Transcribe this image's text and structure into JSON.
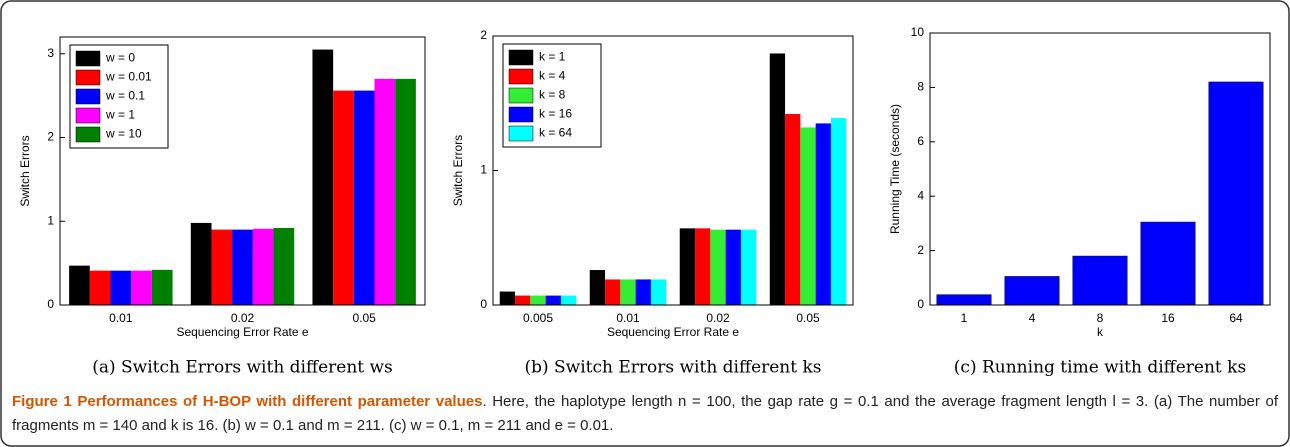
{
  "chart_data": [
    {
      "type": "bar",
      "caption": "(a) Switch Errors with different ws",
      "xlabel": "Sequencing Error Rate e",
      "ylabel": "Switch Errors",
      "categories": [
        "0.01",
        "0.02",
        "0.05"
      ],
      "series": [
        {
          "name": "w = 0",
          "color": "#000000",
          "values": [
            0.47,
            0.98,
            3.05
          ]
        },
        {
          "name": "w = 0.01",
          "color": "#ff0000",
          "values": [
            0.41,
            0.9,
            2.56
          ]
        },
        {
          "name": "w = 0.1",
          "color": "#0000ff",
          "values": [
            0.41,
            0.9,
            2.56
          ]
        },
        {
          "name": "w = 1",
          "color": "#ff00ff",
          "values": [
            0.41,
            0.91,
            2.7
          ]
        },
        {
          "name": "w = 10",
          "color": "#008000",
          "values": [
            0.42,
            0.92,
            2.7
          ]
        }
      ],
      "ylim": [
        0,
        3.2
      ],
      "yticks": [
        0,
        1,
        2,
        3
      ],
      "legend": "upper left"
    },
    {
      "type": "bar",
      "caption": "(b) Switch Errors with different ks",
      "xlabel": "Sequencing Error Rate e",
      "ylabel": "Switch Errors",
      "categories": [
        "0.005",
        "0.01",
        "0.02",
        "0.05"
      ],
      "series": [
        {
          "name": "k = 1",
          "color": "#000000",
          "values": [
            0.1,
            0.26,
            0.57,
            1.87
          ]
        },
        {
          "name": "k = 4",
          "color": "#ff0000",
          "values": [
            0.07,
            0.19,
            0.57,
            1.42
          ]
        },
        {
          "name": "k = 8",
          "color": "#33ee33",
          "values": [
            0.07,
            0.19,
            0.56,
            1.32
          ]
        },
        {
          "name": "k = 16",
          "color": "#0000ff",
          "values": [
            0.07,
            0.19,
            0.56,
            1.35
          ]
        },
        {
          "name": "k = 64",
          "color": "#00ffff",
          "values": [
            0.07,
            0.19,
            0.56,
            1.39
          ]
        }
      ],
      "ylim": [
        0,
        2
      ],
      "yticks": [
        0,
        1,
        2
      ],
      "legend": "upper left"
    },
    {
      "type": "bar",
      "caption": "(c) Running time with different ks",
      "xlabel": "k",
      "ylabel": "Running Time (seconds)",
      "categories": [
        "1",
        "4",
        "8",
        "16",
        "64"
      ],
      "values": [
        0.38,
        1.05,
        1.8,
        3.05,
        8.2
      ],
      "color": "#0000ff",
      "ylim": [
        0,
        10
      ],
      "yticks": [
        0,
        2,
        4,
        6,
        8,
        10
      ]
    }
  ],
  "figure_caption": {
    "title": "Figure 1 Performances of H-BOP with different parameter values",
    "text": ". Here, the haplotype length n = 100, the gap rate g = 0.1 and the average fragment length l = 3. (a) The number of fragments m = 140 and k is 16. (b) w = 0.1 and m = 211. (c) w = 0.1, m = 211 and e = 0.01."
  }
}
